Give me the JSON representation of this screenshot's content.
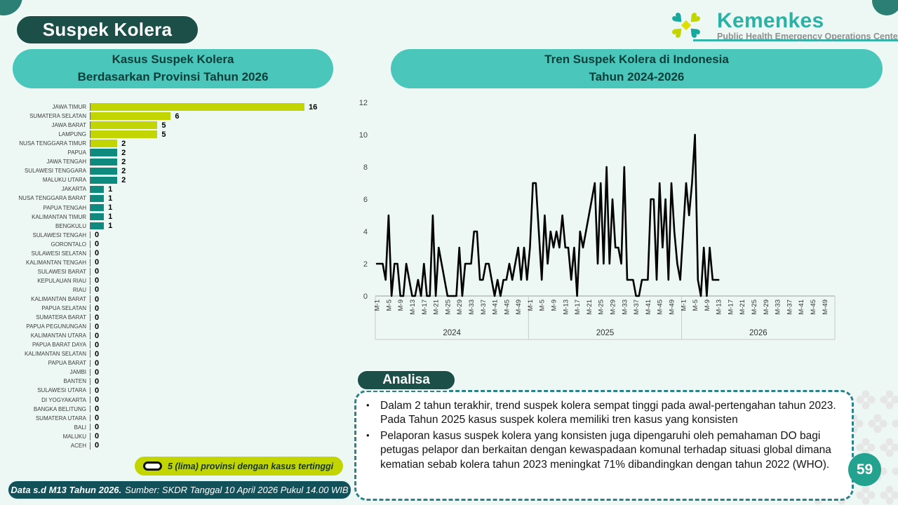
{
  "page": {
    "title": "Suspek Kolera",
    "page_number": "59"
  },
  "logo": {
    "brand": "Kemenkes",
    "subtitle": "Public Health Emergency Operations Center"
  },
  "left_panel": {
    "title_line1": "Kasus Suspek Kolera",
    "title_line2": "Berdasarkan Provinsi Tahun 2026",
    "legend": "5 (lima) provinsi dengan kasus tertinggi",
    "footer_bold": "Data s.d M13 Tahun 2026.",
    "footer_rest": "Sumber: SKDR Tanggal 10 April 2026 Pukul 14.00 WIB"
  },
  "right_panel": {
    "analisa_label": "Analisa",
    "analysis_bullets": [
      "Dalam 2 tahun terakhir, trend suspek kolera sempat tinggi pada awal-pertengahan tahun 2023. Pada Tahun 2025 kasus suspek kolera memiliki tren kasus yang konsisten",
      "Pelaporan kasus suspek kolera yang konsisten juga dipengaruhi oleh pemahaman DO bagi petugas pelapor dan berkaitan dengan kewaspadaan komunal terhadap situasi global dimana kematian sebab kolera tahun 2023 meningkat 71% dibandingkan dengan tahun 2022 (WHO)."
    ]
  },
  "colors": {
    "dark_teal": "#1b4f48",
    "header_teal": "#4ac6ba",
    "bar_highlight": "#c3d501",
    "bar_normal": "#0e8a7e",
    "footer_teal": "#12505a",
    "logo_teal": "#2ab2a6",
    "badge_teal": "#23a28f",
    "dashed_border": "#2a838b",
    "line_color": "#000000"
  },
  "chart_data": [
    {
      "type": "bar",
      "orientation": "horizontal",
      "title": "Kasus Suspek Kolera Berdasarkan Provinsi Tahun 2026",
      "highlight_top_n": 5,
      "highlight_color": "#c3d501",
      "bar_color": "#0e8a7e",
      "xlim": [
        0,
        16
      ],
      "categories": [
        "JAWA TIMUR",
        "SUMATERA SELATAN",
        "JAWA BARAT",
        "LAMPUNG",
        "NUSA TENGGARA TIMUR",
        "PAPUA",
        "JAWA TENGAH",
        "SULAWESI TENGGARA",
        "MALUKU UTARA",
        "JAKARTA",
        "NUSA TENGGARA BARAT",
        "PAPUA TENGAH",
        "KALIMANTAN TIMUR",
        "BENGKULU",
        "SULAWESI TENGAH",
        "GORONTALO",
        "SULAWESI SELATAN",
        "KALIMANTAN TENGAH",
        "SULAWESI BARAT",
        "KEPULAUAN RIAU",
        "RIAU",
        "KALIMANTAN BARAT",
        "PAPUA SELATAN",
        "SUMATERA BARAT",
        "PAPUA PEGUNUNGAN",
        "KALIMANTAN UTARA",
        "PAPUA BARAT DAYA",
        "KALIMANTAN SELATAN",
        "PAPUA BARAT",
        "JAMBI",
        "BANTEN",
        "SULAWESI UTARA",
        "DI YOGYAKARTA",
        "BANGKA BELITUNG",
        "SUMATERA UTARA",
        "BALI",
        "MALUKU",
        "ACEH"
      ],
      "values": [
        16,
        6,
        5,
        5,
        2,
        2,
        2,
        2,
        2,
        1,
        1,
        1,
        1,
        1,
        0,
        0,
        0,
        0,
        0,
        0,
        0,
        0,
        0,
        0,
        0,
        0,
        0,
        0,
        0,
        0,
        0,
        0,
        0,
        0,
        0,
        0,
        0,
        0
      ]
    },
    {
      "type": "line",
      "title": "Tren Suspek Kolera di Indonesia Tahun 2024-2026",
      "note": "weekly values estimated from plot",
      "ylim": [
        0,
        12
      ],
      "yticks": [
        0,
        2,
        4,
        6,
        8,
        10,
        12
      ],
      "xtick_labels_per_year": [
        "M-1",
        "M-5",
        "M-9",
        "M-13",
        "M-17",
        "M-21",
        "M-25",
        "M-29",
        "M-33",
        "M-37",
        "M-41",
        "M-45",
        "M-49"
      ],
      "years": [
        {
          "year": "2024",
          "weeks": 52,
          "values": [
            2,
            2,
            2,
            1,
            5,
            0,
            2,
            2,
            0,
            0,
            2,
            1,
            0,
            0,
            1,
            0,
            2,
            0,
            0,
            5,
            0,
            3,
            2,
            1,
            0,
            0,
            0,
            0,
            3,
            0,
            2,
            2,
            2,
            4,
            4,
            1,
            1,
            2,
            2,
            1,
            0,
            1,
            0,
            1,
            1,
            2,
            1,
            2,
            3,
            1,
            3,
            1
          ]
        },
        {
          "year": "2025",
          "weeks": 52,
          "values": [
            3,
            7,
            7,
            4,
            1,
            5,
            2,
            4,
            3,
            4,
            3,
            5,
            3,
            3,
            1,
            3,
            0,
            4,
            3,
            4,
            5,
            6,
            7,
            2,
            7,
            2,
            8,
            2,
            6,
            3,
            3,
            2,
            8,
            1,
            1,
            1,
            0,
            0,
            1,
            1,
            1,
            6,
            6,
            1,
            7,
            3,
            6,
            1,
            7,
            4,
            2,
            1
          ]
        },
        {
          "year": "2026",
          "weeks": 13,
          "values": [
            4,
            7,
            5,
            7,
            10,
            1,
            0,
            3,
            0,
            3,
            1,
            1,
            1
          ]
        }
      ]
    }
  ]
}
